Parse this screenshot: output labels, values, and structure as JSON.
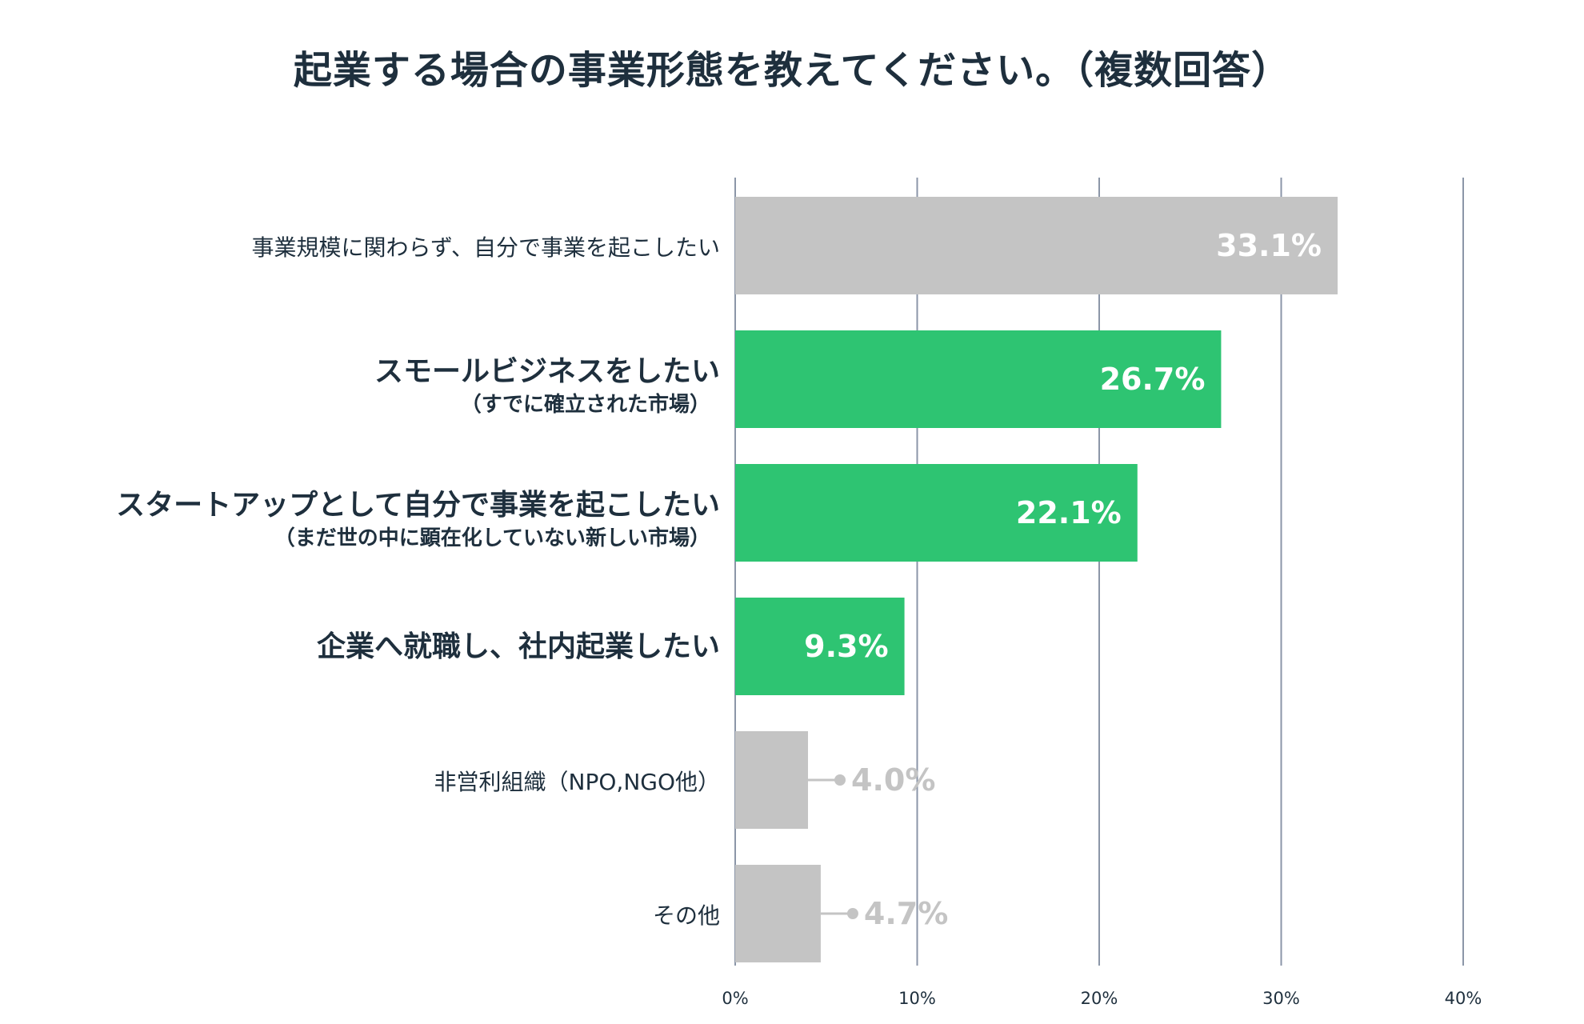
{
  "chart_data": {
    "type": "bar",
    "orientation": "horizontal",
    "title": "起業する場合の事業形態を教えてください。（複数回答）",
    "categories": [
      {
        "label": "事業規模に関わらず、自分で事業を起こしたい",
        "sublabel": "",
        "emphasis": false
      },
      {
        "label": "スモールビジネスをしたい",
        "sublabel": "（すでに確立された市場）",
        "emphasis": true
      },
      {
        "label": "スタートアップとして自分で事業を起こしたい",
        "sublabel": "（まだ世の中に顕在化していない新しい市場）",
        "emphasis": true
      },
      {
        "label": "企業へ就職し、社内起業したい",
        "sublabel": "",
        "emphasis": true
      },
      {
        "label": "非営利組織（NPO,NGO他）",
        "sublabel": "",
        "emphasis": false
      },
      {
        "label": "その他",
        "sublabel": "",
        "emphasis": false
      }
    ],
    "values": [
      33.1,
      26.7,
      22.1,
      9.3,
      4.0,
      4.7
    ],
    "value_labels": [
      "33.1%",
      "26.7%",
      "22.1%",
      "9.3%",
      "4.0%",
      "4.7%"
    ],
    "label_placement": [
      "inside",
      "inside",
      "inside",
      "inside",
      "outside",
      "outside"
    ],
    "xlim": [
      0,
      40
    ],
    "xticks": [
      0,
      10,
      20,
      30,
      40
    ],
    "xtick_labels": [
      "0%",
      "10%",
      "20%",
      "30%",
      "40%"
    ],
    "xlabel": "",
    "ylabel": "",
    "grid": true,
    "colors": {
      "highlight": "#2ec472",
      "neutral": "#c4c4c4",
      "grid": "#8b96a8",
      "text": "#1e2f3d",
      "inside_label": "#ffffff",
      "outside_label": "#c4c4c4"
    }
  }
}
